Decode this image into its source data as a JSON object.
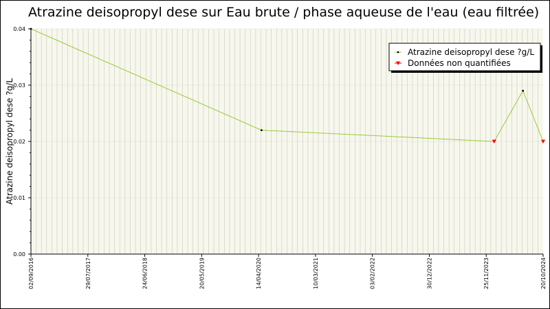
{
  "chart_data": {
    "type": "line",
    "title": "Atrazine deisopropyl dese sur Eau brute / phase aqueuse de l'eau (eau filtrée)",
    "ylabel": "Atrazine deisopropyl dese ?g/L",
    "xlabel": "",
    "x_tick_labels": [
      "02/09/2016",
      "29/07/2017",
      "24/06/2018",
      "20/05/2019",
      "14/04/2020",
      "10/03/2021",
      "03/02/2022",
      "30/12/2022",
      "25/11/2023",
      "20/10/2024"
    ],
    "y_tick_labels": [
      "0.00",
      "0.01",
      "0.02",
      "0.03",
      "0.04"
    ],
    "ylim": [
      0,
      0.04
    ],
    "xlim": [
      "2016-09-02",
      "2024-10-20"
    ],
    "grid": true,
    "legend_position": "top-right",
    "series": [
      {
        "name": "Atrazine deisopropyl dese ?g/L",
        "points": [
          {
            "x": "2016-09-02",
            "y": 0.04,
            "quantified": true
          },
          {
            "x": "2020-05-01",
            "y": 0.022,
            "quantified": true
          },
          {
            "x": "2024-01-10",
            "y": 0.02,
            "quantified": false
          },
          {
            "x": "2024-06-25",
            "y": 0.029,
            "quantified": true
          },
          {
            "x": "2024-10-20",
            "y": 0.02,
            "quantified": false
          }
        ]
      }
    ],
    "legend": [
      {
        "label": "Atrazine deisopropyl dese ?g/L",
        "marker": "dot",
        "color": "#000000"
      },
      {
        "label": "Données non quantifiées",
        "marker": "triangle",
        "color": "#ff0000"
      }
    ],
    "colors": {
      "line": "#99cc33",
      "plot_background": "#f7f7ee",
      "grid": "#c8c8b8",
      "quantified_marker": "#000000",
      "non_quantified_marker": "#ff0000"
    }
  }
}
